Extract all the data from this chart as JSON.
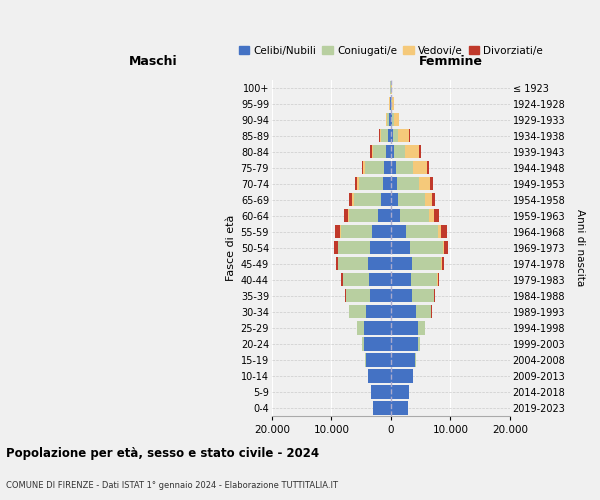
{
  "age_groups": [
    "0-4",
    "5-9",
    "10-14",
    "15-19",
    "20-24",
    "25-29",
    "30-34",
    "35-39",
    "40-44",
    "45-49",
    "50-54",
    "55-59",
    "60-64",
    "65-69",
    "70-74",
    "75-79",
    "80-84",
    "85-89",
    "90-94",
    "95-99",
    "100+"
  ],
  "birth_years": [
    "2019-2023",
    "2014-2018",
    "2009-2013",
    "2004-2008",
    "1999-2003",
    "1994-1998",
    "1989-1993",
    "1984-1988",
    "1979-1983",
    "1974-1978",
    "1969-1973",
    "1964-1968",
    "1959-1963",
    "1954-1958",
    "1949-1953",
    "1944-1948",
    "1939-1943",
    "1934-1938",
    "1929-1933",
    "1924-1928",
    "≤ 1923"
  ],
  "maschi": {
    "celibi": [
      3000,
      3300,
      3800,
      4200,
      4500,
      4500,
      4200,
      3500,
      3600,
      3800,
      3500,
      3200,
      2200,
      1700,
      1400,
      1100,
      800,
      500,
      300,
      120,
      50
    ],
    "coniugati": [
      5,
      5,
      20,
      100,
      400,
      1200,
      2800,
      4000,
      4500,
      5000,
      5400,
      5200,
      4800,
      4500,
      4000,
      3200,
      2200,
      1200,
      400,
      80,
      20
    ],
    "vedovi": [
      5,
      5,
      5,
      5,
      5,
      5,
      5,
      10,
      20,
      40,
      60,
      100,
      200,
      250,
      300,
      300,
      250,
      200,
      100,
      30,
      5
    ],
    "divorziati": [
      5,
      5,
      5,
      5,
      10,
      30,
      80,
      150,
      200,
      400,
      600,
      900,
      700,
      500,
      400,
      300,
      200,
      100,
      60,
      20,
      5
    ]
  },
  "femmine": {
    "nubili": [
      2800,
      3100,
      3700,
      4100,
      4600,
      4600,
      4200,
      3500,
      3400,
      3500,
      3200,
      2600,
      1600,
      1200,
      1000,
      800,
      600,
      350,
      200,
      100,
      50
    ],
    "coniugate": [
      5,
      5,
      15,
      80,
      300,
      1100,
      2600,
      3800,
      4400,
      5000,
      5500,
      5400,
      4800,
      4500,
      3800,
      3000,
      1800,
      900,
      250,
      60,
      15
    ],
    "vedove": [
      5,
      5,
      5,
      5,
      5,
      5,
      10,
      20,
      50,
      100,
      200,
      400,
      800,
      1200,
      1700,
      2200,
      2400,
      1800,
      900,
      300,
      50
    ],
    "divorziate": [
      5,
      5,
      5,
      5,
      10,
      30,
      80,
      150,
      200,
      400,
      700,
      1100,
      900,
      600,
      500,
      350,
      200,
      120,
      60,
      20,
      5
    ]
  },
  "color_celibi": "#4472c4",
  "color_coniugati": "#b8cfa0",
  "color_vedovi": "#f5c97a",
  "color_divorziati": "#c0392b",
  "title_main": "Popolazione per età, sesso e stato civile - 2024",
  "title_sub": "COMUNE DI FIRENZE - Dati ISTAT 1° gennaio 2024 - Elaborazione TUTTITALIA.IT",
  "xlabel_left": "Maschi",
  "xlabel_right": "Femmine",
  "ylabel_left": "Fasce di età",
  "ylabel_right": "Anni di nascita",
  "xlim": 20000,
  "xticks": [
    20000,
    10000,
    0,
    10000,
    20000
  ],
  "xtick_labels": [
    "20.000",
    "10.000",
    "0",
    "10.000",
    "20.000"
  ],
  "legend_labels": [
    "Celibi/Nubili",
    "Coniugati/e",
    "Vedovi/e",
    "Divorziati/e"
  ],
  "background_color": "#f0f0f0"
}
